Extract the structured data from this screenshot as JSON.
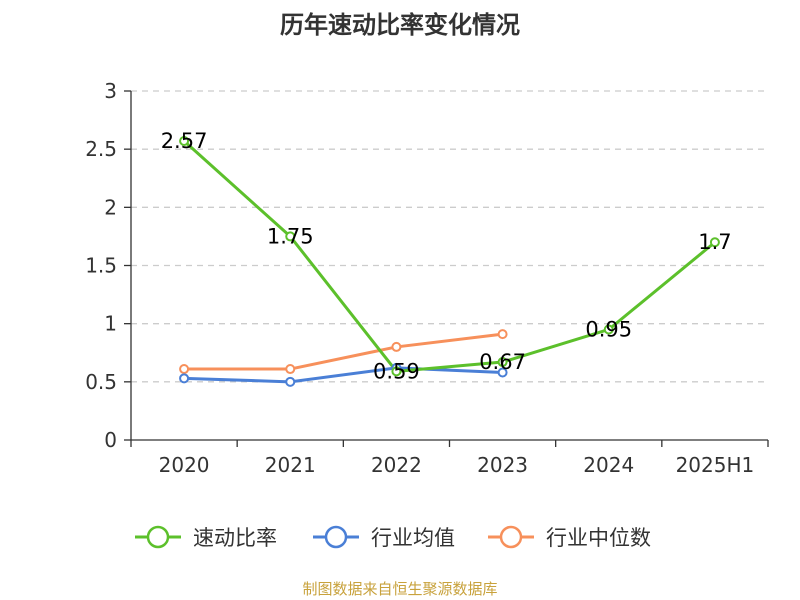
{
  "chart_data": {
    "type": "line",
    "title": "历年速动比率变化情况",
    "categories": [
      "2020",
      "2021",
      "2022",
      "2023",
      "2024",
      "2025H1"
    ],
    "yticks": [
      "0",
      "0.5",
      "1",
      "1.5",
      "2",
      "2.5",
      "3"
    ],
    "ylim": [
      0,
      3
    ],
    "grid": true,
    "legend_position": "bottom",
    "series": [
      {
        "name": "速动比率",
        "color": "#5cc02b",
        "values": [
          2.57,
          1.75,
          0.59,
          0.67,
          0.95,
          1.7
        ],
        "labels": [
          "2.57",
          "1.75",
          "0.59",
          "0.67",
          "0.95",
          "1.7"
        ]
      },
      {
        "name": "行业均值",
        "color": "#4a7fd6",
        "values": [
          0.53,
          0.5,
          0.62,
          0.58,
          null,
          null
        ]
      },
      {
        "name": "行业中位数",
        "color": "#f7905b",
        "values": [
          0.61,
          0.61,
          0.8,
          0.91,
          null,
          null
        ]
      }
    ]
  },
  "source_text": "制图数据来自恒生聚源数据库"
}
